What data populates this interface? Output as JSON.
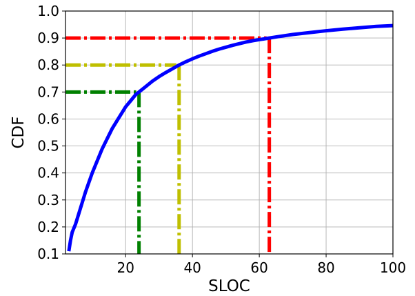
{
  "chart_data": {
    "type": "line",
    "title": "",
    "xlabel": "SLOC",
    "ylabel": "CDF",
    "xlim": [
      2,
      100
    ],
    "ylim": [
      0.1,
      1.0
    ],
    "grid": true,
    "legend": "none",
    "x_ticks": [
      20,
      40,
      60,
      80,
      100
    ],
    "x_tick_labels": [
      "20",
      "40",
      "60",
      "80",
      "100"
    ],
    "y_ticks": [
      0.1,
      0.2,
      0.3,
      0.4,
      0.5,
      0.6,
      0.7,
      0.8,
      0.9,
      1.0
    ],
    "y_tick_labels": [
      "0.1",
      "0.2",
      "0.3",
      "0.4",
      "0.5",
      "0.6",
      "0.7",
      "0.8",
      "0.9",
      "1.0"
    ],
    "series": [
      {
        "color": "#0000ff",
        "style": "solid",
        "x": [
          3,
          3.5,
          4,
          5,
          6,
          7,
          8,
          9,
          10,
          11,
          12,
          13,
          14,
          15,
          16,
          17,
          18,
          19,
          20,
          21,
          22,
          23,
          24,
          26,
          28,
          30,
          32,
          34,
          36,
          38,
          40,
          42,
          44,
          46,
          48,
          50,
          52,
          54,
          56,
          58,
          60,
          62,
          63,
          65,
          70,
          75,
          80,
          85,
          90,
          95,
          100
        ],
        "y": [
          0.11,
          0.15,
          0.18,
          0.21,
          0.25,
          0.29,
          0.33,
          0.365,
          0.4,
          0.43,
          0.46,
          0.49,
          0.515,
          0.54,
          0.565,
          0.585,
          0.605,
          0.625,
          0.645,
          0.66,
          0.675,
          0.69,
          0.7,
          0.72,
          0.74,
          0.757,
          0.772,
          0.786,
          0.8,
          0.812,
          0.823,
          0.833,
          0.842,
          0.851,
          0.859,
          0.866,
          0.873,
          0.879,
          0.885,
          0.89,
          0.894,
          0.898,
          0.9,
          0.904,
          0.913,
          0.92,
          0.927,
          0.933,
          0.938,
          0.943,
          0.946
        ]
      }
    ],
    "reference_lines": [
      {
        "color": "#ff0000",
        "style": "dashdot",
        "x": 63,
        "y": 0.9
      },
      {
        "color": "#bfbf00",
        "style": "dashdot",
        "x": 36,
        "y": 0.8
      },
      {
        "color": "#008000",
        "style": "dashdot",
        "x": 24,
        "y": 0.7
      }
    ]
  }
}
